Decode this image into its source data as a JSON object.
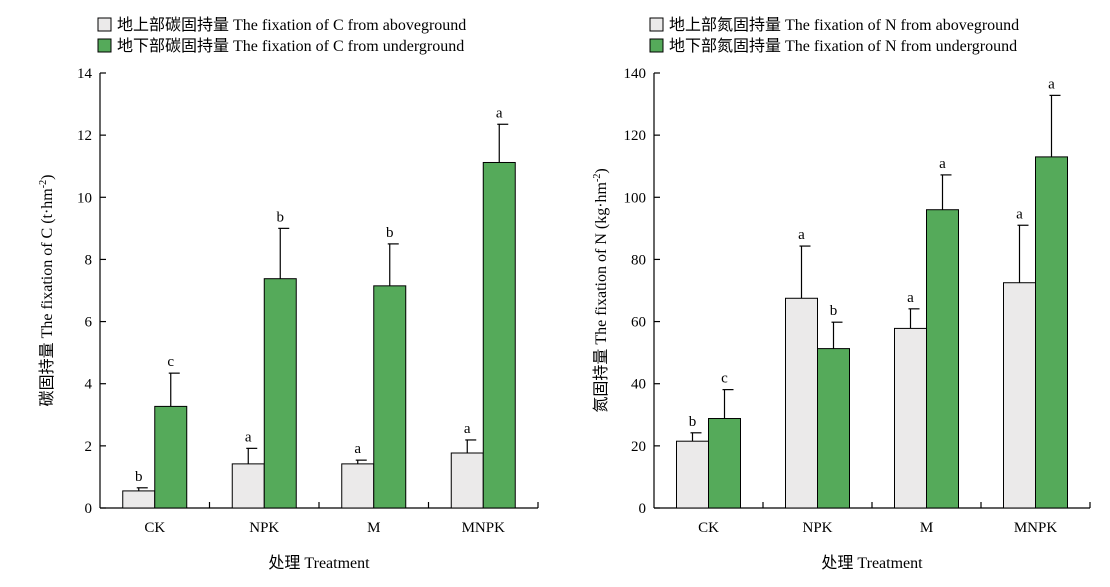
{
  "colors": {
    "above_fill": "#ebeaea",
    "below_fill": "#55aa5a",
    "stroke": "#000000"
  },
  "chart_data": [
    {
      "type": "bar",
      "categories": [
        "CK",
        "NPK",
        "M",
        "MNPK"
      ],
      "series": [
        {
          "name": "地上部碳固持量 The fixation of C from aboveground",
          "values": [
            0.55,
            1.42,
            1.42,
            1.77
          ],
          "errors": [
            0.1,
            0.5,
            0.12,
            0.42
          ],
          "labels": [
            "b",
            "a",
            "a",
            "a"
          ]
        },
        {
          "name": "地下部碳固持量 The fixation of C from underground",
          "values": [
            3.27,
            7.38,
            7.15,
            11.12
          ],
          "errors": [
            1.07,
            1.62,
            1.35,
            1.23
          ],
          "labels": [
            "c",
            "b",
            "b",
            "a"
          ]
        }
      ],
      "ylabel": "碳固持量 The fixation of C (t·hm",
      "ylabel_sup": "-2",
      "ylabel_end": ")",
      "xlabel": "处理 Treatment",
      "ylim": [
        0,
        14
      ],
      "yticks": [
        0,
        2,
        4,
        6,
        8,
        10,
        12,
        14
      ]
    },
    {
      "type": "bar",
      "categories": [
        "CK",
        "NPK",
        "M",
        "MNPK"
      ],
      "series": [
        {
          "name": "地上部氮固持量 The fixation of N from aboveground",
          "values": [
            21.5,
            67.5,
            57.8,
            72.5
          ],
          "errors": [
            2.7,
            16.8,
            6.3,
            18.5
          ],
          "labels": [
            "b",
            "a",
            "a",
            "a"
          ]
        },
        {
          "name": "地下部氮固持量 The fixation of N from underground",
          "values": [
            28.8,
            51.3,
            96.0,
            113.0
          ],
          "errors": [
            9.3,
            8.5,
            11.2,
            19.8
          ],
          "labels": [
            "c",
            "b",
            "a",
            "a"
          ]
        }
      ],
      "ylabel": "氮固持量 The fixation of N (kg·hm",
      "ylabel_sup": "-2",
      "ylabel_end": ")",
      "xlabel": "处理 Treatment",
      "ylim": [
        0,
        140
      ],
      "yticks": [
        0,
        20,
        40,
        60,
        80,
        100,
        120,
        140
      ]
    }
  ]
}
